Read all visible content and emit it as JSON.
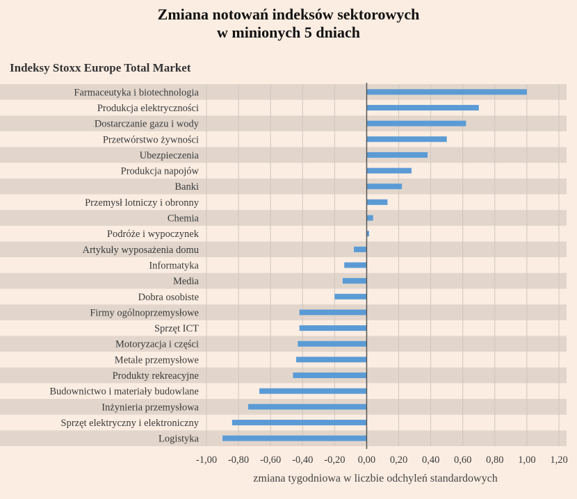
{
  "title_line1": "Zmiana notowań indeksów sektorowych",
  "title_line2": "w minionych 5 dniach",
  "subtitle": "Indeksy Stoxx Europe Total Market",
  "colors": {
    "bar": "#5b9bd5",
    "stripe": "#e2d6cc",
    "background": "#fbede2",
    "zero_line": "#555555",
    "grid": "#cfc5bd"
  },
  "chart_data": {
    "type": "bar",
    "orientation": "horizontal",
    "title": "Zmiana notowań indeksów sektorowych w minionych 5 dniach",
    "subtitle": "Indeksy Stoxx Europe Total Market",
    "xlabel": "zmiana tygodniowa w liczbie odchyleń standardowych",
    "ylabel": "",
    "xlim": [
      -1.0,
      1.2
    ],
    "xticks": [
      -1.0,
      -0.8,
      -0.6,
      -0.4,
      -0.2,
      0.0,
      0.2,
      0.4,
      0.6,
      0.8,
      1.0,
      1.2
    ],
    "xtick_labels": [
      "-1,00",
      "-0,80",
      "-0,60",
      "-0,40",
      "-0,20",
      "0,00",
      "0,20",
      "0,40",
      "0,60",
      "0,80",
      "1,00",
      "1,20"
    ],
    "grid": true,
    "categories": [
      "Farmaceutyka i biotechnologia",
      "Produkcja elektryczności",
      "Dostarczanie gazu i wody",
      "Przetwórstwo żywności",
      "Ubezpieczenia",
      "Produkcja napojów",
      "Banki",
      "Przemysł lotniczy i obronny",
      "Chemia",
      "Podróże i wypoczynek",
      "Artykuły wyposażenia domu",
      "Informatyka",
      "Media",
      "Dobra osobiste",
      "Firmy ogólnoprzemysłowe",
      "Sprzęt ICT",
      "Motoryzacja i części",
      "Metale przemysłowe",
      "Produkty rekreacyjne",
      "Budownictwo i materiały budowlane",
      "Inżynieria przemysłowa",
      "Sprzęt elektryczny i elektroniczny",
      "Logistyka"
    ],
    "values": [
      1.0,
      0.7,
      0.62,
      0.5,
      0.38,
      0.28,
      0.22,
      0.13,
      0.04,
      0.015,
      -0.08,
      -0.14,
      -0.15,
      -0.2,
      -0.42,
      -0.42,
      -0.43,
      -0.44,
      -0.46,
      -0.67,
      -0.74,
      -0.84,
      -0.9
    ]
  }
}
